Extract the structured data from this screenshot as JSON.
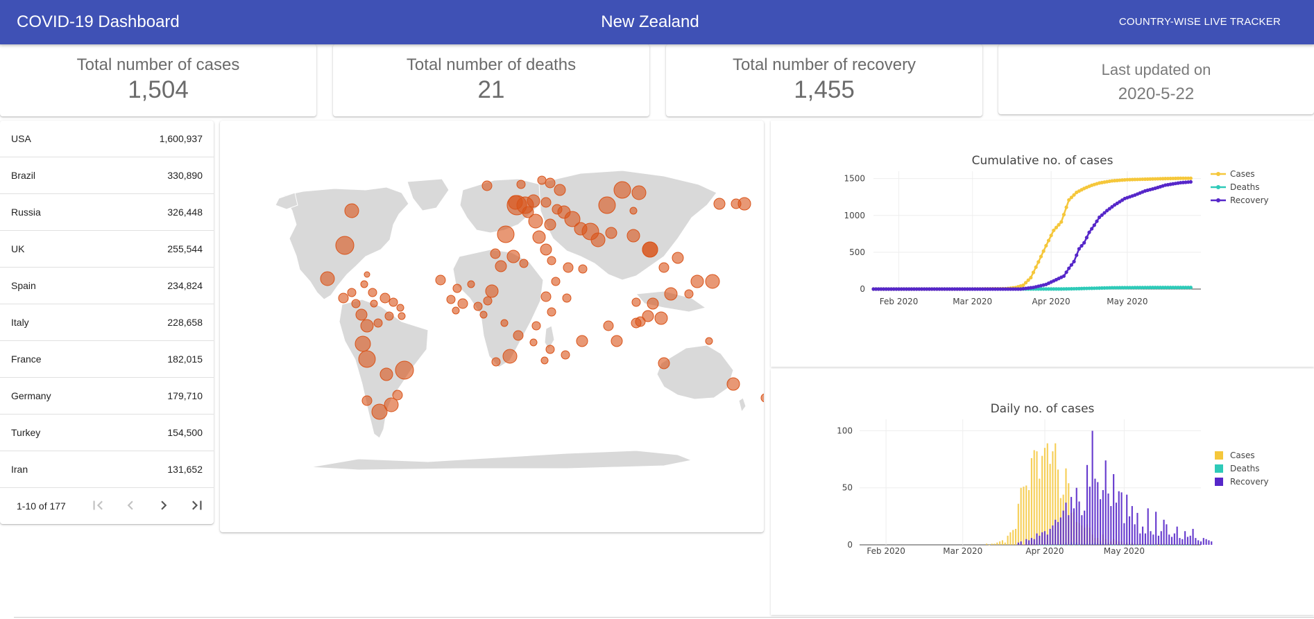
{
  "header": {
    "title": "COVID-19 Dashboard",
    "country": "New Zealand",
    "tracker_label": "COUNTRY-WISE LIVE TRACKER"
  },
  "stats": {
    "cases": {
      "label": "Total number of cases",
      "value": "1,504"
    },
    "deaths": {
      "label": "Total number of deaths",
      "value": "21"
    },
    "recovery": {
      "label": "Total number of recovery",
      "value": "1,455"
    },
    "updated": {
      "label": "Last updated on",
      "value": "2020-5-22"
    }
  },
  "countries": [
    {
      "name": "USA",
      "value": "1,600,937"
    },
    {
      "name": "Brazil",
      "value": "330,890"
    },
    {
      "name": "Russia",
      "value": "326,448"
    },
    {
      "name": "UK",
      "value": "255,544"
    },
    {
      "name": "Spain",
      "value": "234,824"
    },
    {
      "name": "Italy",
      "value": "228,658"
    },
    {
      "name": "France",
      "value": "182,015"
    },
    {
      "name": "Germany",
      "value": "179,710"
    },
    {
      "name": "Turkey",
      "value": "154,500"
    },
    {
      "name": "Iran",
      "value": "131,652"
    }
  ],
  "pagination": {
    "range": "1-10 of 177",
    "icons": [
      "first-page-icon",
      "previous-page-icon",
      "next-page-icon",
      "last-page-icon"
    ]
  },
  "colors": {
    "appbar": "#3f51b5",
    "bubble": "#d95319",
    "cases": "#f5c73b",
    "deaths": "#2ecab8",
    "recovery": "#5627c9"
  },
  "chart_data": [
    {
      "type": "line",
      "title": "Cumulative no. of cases",
      "x_ticks": [
        "Feb 2020",
        "Mar 2020",
        "Apr 2020",
        "May 2020"
      ],
      "y_ticks": [
        0,
        500,
        1000,
        1500
      ],
      "ylim": [
        0,
        1600
      ],
      "xlim": [
        "2020-01-22",
        "2020-05-30"
      ],
      "legend_position": "right",
      "series": [
        {
          "name": "Cases",
          "points": [
            [
              "2020-01-22",
              0
            ],
            [
              "2020-02-28",
              0
            ],
            [
              "2020-03-14",
              5
            ],
            [
              "2020-03-18",
              20
            ],
            [
              "2020-03-21",
              52
            ],
            [
              "2020-03-24",
              155
            ],
            [
              "2020-03-27",
              368
            ],
            [
              "2020-03-30",
              589
            ],
            [
              "2020-04-02",
              797
            ],
            [
              "2020-04-05",
              911
            ],
            [
              "2020-04-08",
              1210
            ],
            [
              "2020-04-11",
              1312
            ],
            [
              "2020-04-14",
              1366
            ],
            [
              "2020-04-17",
              1409
            ],
            [
              "2020-04-20",
              1440
            ],
            [
              "2020-04-25",
              1469
            ],
            [
              "2020-05-01",
              1485
            ],
            [
              "2020-05-08",
              1492
            ],
            [
              "2020-05-15",
              1499
            ],
            [
              "2020-05-22",
              1504
            ],
            [
              "2020-05-26",
              1504
            ]
          ]
        },
        {
          "name": "Deaths",
          "points": [
            [
              "2020-01-22",
              0
            ],
            [
              "2020-03-29",
              1
            ],
            [
              "2020-04-05",
              1
            ],
            [
              "2020-04-10",
              4
            ],
            [
              "2020-04-15",
              9
            ],
            [
              "2020-04-20",
              13
            ],
            [
              "2020-04-25",
              18
            ],
            [
              "2020-05-01",
              19
            ],
            [
              "2020-05-10",
              21
            ],
            [
              "2020-05-26",
              21
            ]
          ]
        },
        {
          "name": "Recovery",
          "points": [
            [
              "2020-01-22",
              0
            ],
            [
              "2020-03-20",
              0
            ],
            [
              "2020-03-25",
              22
            ],
            [
              "2020-03-30",
              63
            ],
            [
              "2020-04-03",
              127
            ],
            [
              "2020-04-06",
              176
            ],
            [
              "2020-04-08",
              282
            ],
            [
              "2020-04-10",
              373
            ],
            [
              "2020-04-12",
              546
            ],
            [
              "2020-04-14",
              628
            ],
            [
              "2020-04-16",
              770
            ],
            [
              "2020-04-18",
              867
            ],
            [
              "2020-04-20",
              974
            ],
            [
              "2020-04-23",
              1065
            ],
            [
              "2020-04-26",
              1142
            ],
            [
              "2020-04-30",
              1229
            ],
            [
              "2020-05-04",
              1276
            ],
            [
              "2020-05-08",
              1332
            ],
            [
              "2020-05-12",
              1368
            ],
            [
              "2020-05-16",
              1411
            ],
            [
              "2020-05-19",
              1428
            ],
            [
              "2020-05-22",
              1444
            ],
            [
              "2020-05-26",
              1455
            ]
          ]
        }
      ]
    },
    {
      "type": "bar",
      "title": "Daily no. of cases",
      "x_ticks": [
        "Feb 2020",
        "Mar 2020",
        "Apr 2020",
        "May 2020"
      ],
      "y_ticks": [
        0,
        50,
        100
      ],
      "ylim": [
        0,
        110
      ],
      "xlim": [
        "2020-01-22",
        "2020-05-30"
      ],
      "legend_position": "right",
      "series": [
        {
          "name": "Cases",
          "start": "2020-03-10",
          "values": [
            1,
            0,
            1,
            1,
            2,
            3,
            4,
            2,
            8,
            11,
            13,
            14,
            36,
            50,
            51,
            52,
            48,
            76,
            83,
            82,
            58,
            78,
            85,
            89,
            71,
            82,
            89,
            66,
            41,
            44,
            67,
            54,
            28,
            29,
            20,
            19,
            17,
            15,
            18,
            15,
            9,
            6,
            6,
            3,
            9,
            5,
            2,
            3,
            5,
            4,
            3,
            3,
            1,
            2,
            1,
            2,
            1,
            1,
            0,
            1,
            0,
            1,
            0,
            0,
            1,
            0,
            0,
            1,
            0,
            0,
            0,
            0,
            0,
            0,
            1,
            0,
            0
          ]
        },
        {
          "name": "Deaths",
          "start": "2020-03-29",
          "values": [
            1,
            0,
            0,
            0,
            0,
            0,
            0,
            0,
            0,
            0,
            0,
            2,
            0,
            2,
            0,
            2,
            0,
            1,
            1,
            1,
            1,
            1,
            2,
            1,
            1,
            1,
            1,
            1,
            0,
            0,
            0,
            1,
            0,
            0,
            1,
            0,
            1,
            0,
            0,
            1,
            0,
            0,
            0,
            0,
            0,
            0,
            1,
            0,
            0,
            0,
            0,
            0,
            0,
            0,
            0,
            0,
            0,
            0,
            0
          ]
        },
        {
          "name": "Recovery",
          "start": "2020-03-22",
          "values": [
            2,
            3,
            0,
            5,
            4,
            6,
            5,
            10,
            8,
            11,
            12,
            9,
            14,
            17,
            22,
            20,
            24,
            30,
            37,
            26,
            42,
            32,
            50,
            38,
            26,
            30,
            70,
            51,
            100,
            58,
            55,
            40,
            48,
            74,
            45,
            34,
            62,
            37,
            47,
            46,
            19,
            44,
            25,
            34,
            18,
            28,
            10,
            16,
            10,
            32,
            12,
            9,
            29,
            8,
            12,
            22,
            18,
            9,
            7,
            10,
            16,
            6,
            5,
            12,
            7,
            8,
            14,
            6,
            4,
            3,
            6,
            5,
            4,
            3
          ]
        }
      ]
    }
  ]
}
